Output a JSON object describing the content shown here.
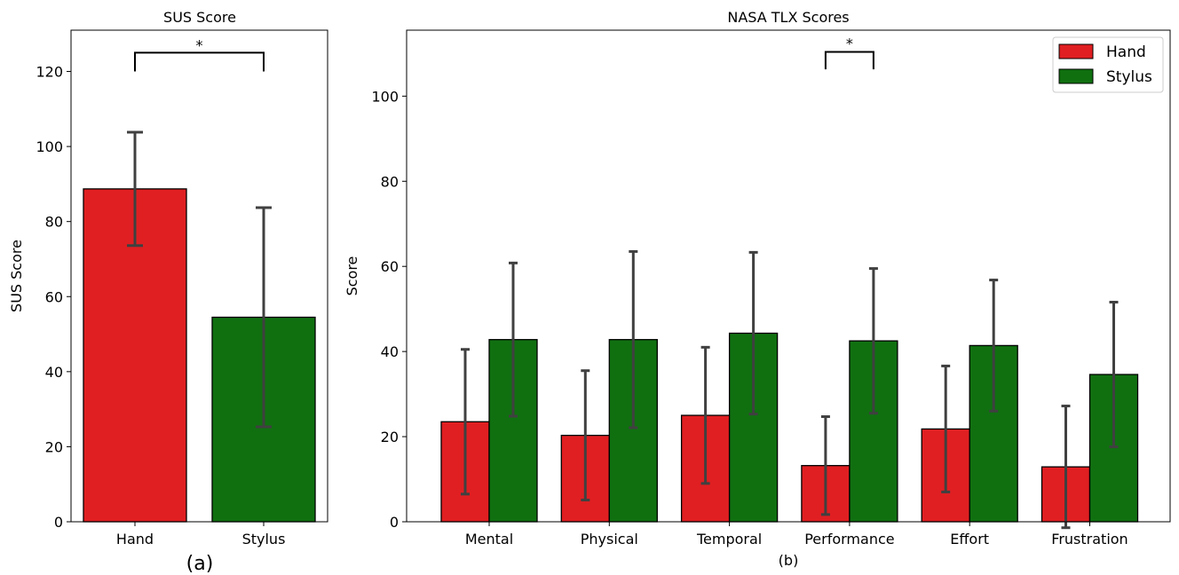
{
  "colors": {
    "hand": "#e01f22",
    "stylus": "#107010",
    "error": "#404040",
    "edge": "#000000"
  },
  "chart_data": [
    {
      "type": "bar",
      "title": "SUS Score",
      "ylabel": "SUS Score",
      "xlabel": "",
      "caption": "(a)",
      "ylim": [
        0,
        131
      ],
      "yticks": [
        "0",
        "20",
        "40",
        "60",
        "80",
        "100",
        "120"
      ],
      "ytick_values": [
        0,
        20,
        40,
        60,
        80,
        100,
        120
      ],
      "categories": [
        "Hand",
        "Stylus"
      ],
      "values": [
        88.7,
        54.5
      ],
      "errors": [
        15.1,
        29.2
      ],
      "significance": {
        "label": "*",
        "from": 0,
        "to": 1,
        "y": 125,
        "drop_to": 120
      }
    },
    {
      "type": "bar",
      "title": "NASA TLX Scores",
      "ylabel": "Score",
      "xlabel": "(b)",
      "ylim": [
        0,
        115.5
      ],
      "yticks": [
        "0",
        "20",
        "40",
        "60",
        "80",
        "100"
      ],
      "ytick_values": [
        0,
        20,
        40,
        60,
        80,
        100
      ],
      "categories": [
        "Mental",
        "Physical",
        "Temporal",
        "Performance",
        "Effort",
        "Frustration"
      ],
      "legend": {
        "position": "top-right",
        "entries": [
          "Hand",
          "Stylus"
        ]
      },
      "series": [
        {
          "name": "Hand",
          "values": [
            23.5,
            20.3,
            25.0,
            13.2,
            21.8,
            12.9
          ],
          "errors": [
            17.0,
            15.2,
            16.0,
            11.5,
            14.8,
            14.3
          ]
        },
        {
          "name": "Stylus",
          "values": [
            42.8,
            42.8,
            44.3,
            42.5,
            41.4,
            34.6
          ],
          "errors": [
            18.0,
            20.7,
            19.0,
            17.0,
            15.4,
            17.0
          ]
        }
      ],
      "significance": {
        "label": "*",
        "category": 3,
        "y": 110.4,
        "drop_to": 106.3
      }
    }
  ]
}
